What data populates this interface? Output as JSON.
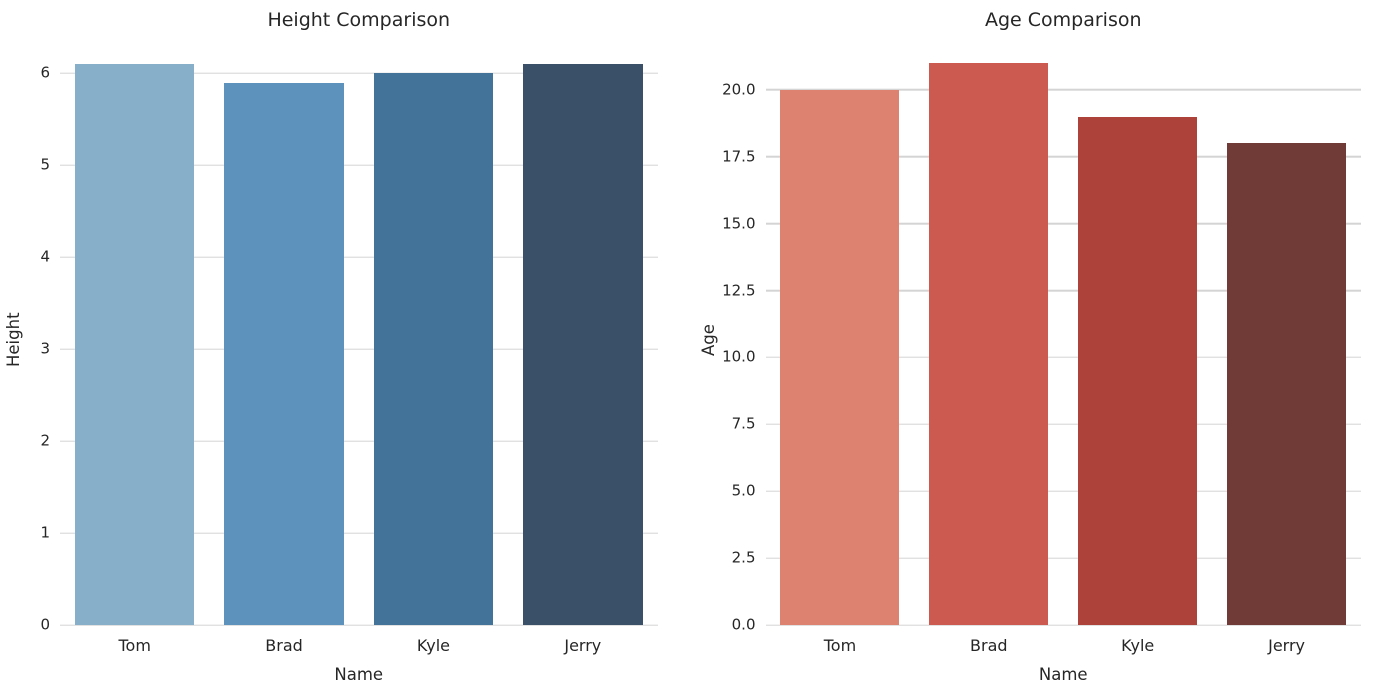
{
  "figure": {
    "background": "#ffffff",
    "text_color": "#262626",
    "grid_color": "#d4d4d4"
  },
  "chart_data": [
    {
      "type": "bar",
      "title": "Height Comparison",
      "xlabel": "Name",
      "ylabel": "Height",
      "categories": [
        "Tom",
        "Brad",
        "Kyle",
        "Jerry"
      ],
      "values": [
        6.1,
        5.9,
        6.0,
        6.1
      ],
      "bar_colors": [
        "#88afc9",
        "#5c92bc",
        "#447399",
        "#3a5068"
      ],
      "ylim": [
        0,
        6.2
      ],
      "yticks": [
        0,
        1,
        2,
        3,
        4,
        5,
        6
      ],
      "ytick_labels": [
        "0",
        "1",
        "2",
        "3",
        "4",
        "5",
        "6"
      ],
      "bar_width_fraction": 0.8,
      "grid": true,
      "legend_position": "none"
    },
    {
      "type": "bar",
      "title": "Age Comparison",
      "xlabel": "Name",
      "ylabel": "Age",
      "categories": [
        "Tom",
        "Brad",
        "Kyle",
        "Jerry"
      ],
      "values": [
        20,
        21,
        19,
        18
      ],
      "bar_colors": [
        "#dd8270",
        "#cc5a50",
        "#ac4239",
        "#703b36"
      ],
      "ylim": [
        0,
        21.3
      ],
      "yticks": [
        0,
        2.5,
        5,
        7.5,
        10,
        12.5,
        15,
        17.5,
        20
      ],
      "ytick_labels": [
        "0.0",
        "2.5",
        "5.0",
        "7.5",
        "10.0",
        "12.5",
        "15.0",
        "17.5",
        "20.0"
      ],
      "bar_width_fraction": 0.8,
      "grid": true,
      "legend_position": "none"
    }
  ]
}
